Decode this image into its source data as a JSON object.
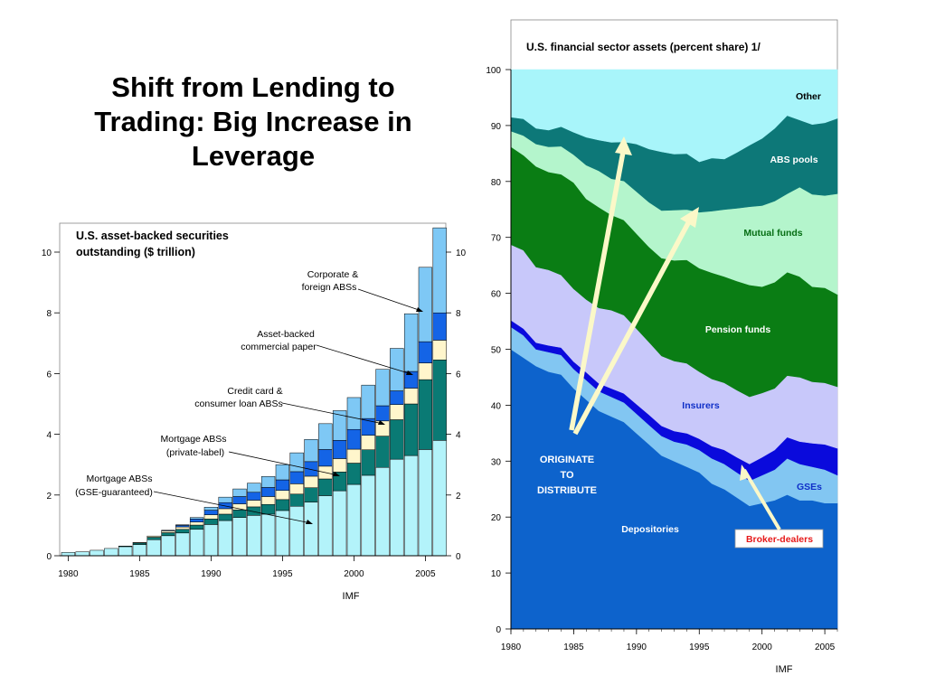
{
  "slide": {
    "title_lines": [
      "Shift from Lending to",
      "Trading: Big Increase in",
      "Leverage"
    ]
  },
  "chart_data": [
    {
      "type": "bar",
      "stacked": true,
      "title_lines": [
        "U.S. asset-backed securities",
        "outstanding ($ trillion)"
      ],
      "source": "IMF",
      "x": [
        1980,
        1981,
        1982,
        1983,
        1984,
        1985,
        1986,
        1987,
        1988,
        1989,
        1990,
        1991,
        1992,
        1993,
        1994,
        1995,
        1996,
        1997,
        1998,
        1999,
        2000,
        2001,
        2002,
        2003,
        2004,
        2005,
        2006
      ],
      "x_ticks": [
        "1980",
        "1985",
        "1990",
        "1995",
        "2000",
        "2005"
      ],
      "y_ticks": [
        "0",
        "2",
        "4",
        "6",
        "8",
        "10"
      ],
      "ylim": [
        0,
        11
      ],
      "grid": false,
      "series": [
        {
          "key": "gse",
          "color": "#b3f3fa",
          "values": [
            0.11,
            0.13,
            0.18,
            0.24,
            0.3,
            0.37,
            0.53,
            0.66,
            0.75,
            0.87,
            1.03,
            1.16,
            1.26,
            1.33,
            1.37,
            1.49,
            1.63,
            1.77,
            1.98,
            2.14,
            2.35,
            2.65,
            2.91,
            3.18,
            3.3,
            3.5,
            3.8
          ]
        },
        {
          "key": "private",
          "color": "#0a7a74",
          "values": [
            0,
            0,
            0,
            0,
            0.02,
            0.05,
            0.08,
            0.1,
            0.12,
            0.14,
            0.18,
            0.21,
            0.25,
            0.28,
            0.32,
            0.36,
            0.4,
            0.47,
            0.55,
            0.62,
            0.7,
            0.84,
            1.03,
            1.3,
            1.7,
            2.3,
            2.65
          ]
        },
        {
          "key": "consumer",
          "color": "#fff6cc",
          "values": [
            0,
            0,
            0,
            0,
            0,
            0.02,
            0.04,
            0.06,
            0.08,
            0.1,
            0.14,
            0.18,
            0.2,
            0.22,
            0.26,
            0.3,
            0.34,
            0.38,
            0.42,
            0.44,
            0.46,
            0.48,
            0.5,
            0.5,
            0.52,
            0.55,
            0.65
          ]
        },
        {
          "key": "abcp",
          "color": "#1464e6",
          "values": [
            0,
            0,
            0,
            0,
            0,
            0,
            0,
            0.02,
            0.05,
            0.1,
            0.15,
            0.2,
            0.24,
            0.26,
            0.3,
            0.35,
            0.4,
            0.48,
            0.55,
            0.6,
            0.65,
            0.55,
            0.5,
            0.45,
            0.55,
            0.7,
            0.9
          ]
        },
        {
          "key": "corporate",
          "color": "#7ec8f5",
          "values": [
            0,
            0,
            0,
            0,
            0,
            0,
            0,
            0,
            0.02,
            0.05,
            0.1,
            0.18,
            0.25,
            0.3,
            0.36,
            0.5,
            0.62,
            0.73,
            0.85,
            0.98,
            1.05,
            1.1,
            1.2,
            1.4,
            1.9,
            2.45,
            2.8
          ]
        }
      ],
      "annotations": [
        {
          "lines": [
            "Corporate &",
            "foreign ABSs"
          ]
        },
        {
          "lines": [
            "Asset-backed",
            "commercial paper"
          ]
        },
        {
          "lines": [
            "Credit card &",
            "consumer loan ABSs"
          ]
        },
        {
          "lines": [
            "Mortgage ABSs",
            "(private-label)"
          ]
        },
        {
          "lines": [
            "Mortgage ABSs",
            "(GSE-guaranteed)"
          ]
        }
      ]
    },
    {
      "type": "area",
      "stacked": true,
      "title": "U.S. financial sector assets (percent share) 1/",
      "source": "IMF",
      "x": [
        1980,
        1981,
        1982,
        1983,
        1984,
        1985,
        1986,
        1987,
        1988,
        1989,
        1990,
        1991,
        1992,
        1993,
        1994,
        1995,
        1996,
        1997,
        1998,
        1999,
        2000,
        2001,
        2002,
        2003,
        2004,
        2005,
        2006
      ],
      "x_ticks": [
        "1980",
        "1985",
        "1990",
        "1995",
        "2000",
        "2005"
      ],
      "y_ticks": [
        "0",
        "10",
        "20",
        "30",
        "40",
        "50",
        "60",
        "70",
        "80",
        "90",
        "100"
      ],
      "ylim": [
        0,
        100
      ],
      "grid": false,
      "series": [
        {
          "name": "Depositories",
          "color": "#0d63cc",
          "label_color": "#ffffff",
          "values": [
            50,
            48.5,
            47,
            46,
            45.5,
            43,
            41,
            39,
            38,
            37,
            35,
            33,
            31,
            30,
            29,
            28,
            26,
            25,
            23.5,
            22,
            22.5,
            23,
            24,
            23,
            23,
            22.5,
            22.5
          ]
        },
        {
          "name": "GSEs",
          "color": "#82c6f2",
          "label_color": "#1030c8",
          "values": [
            4,
            4,
            3,
            3.5,
            3.5,
            3.5,
            3.5,
            3.5,
            3.5,
            3.5,
            3.5,
            3.5,
            3.5,
            3.5,
            4,
            4,
            4.5,
            4.5,
            4.5,
            4.5,
            5,
            5.5,
            6.5,
            6.5,
            6,
            6,
            5
          ]
        },
        {
          "name": "Broker-dealers",
          "color": "#0a0adc",
          "label_color": "#e61919",
          "values": [
            1.2,
            1.2,
            1.2,
            1.2,
            1.3,
            1.3,
            1.4,
            1.4,
            1.5,
            1.6,
            1.7,
            1.8,
            1.8,
            1.9,
            2,
            2,
            2.2,
            2.5,
            2.7,
            3,
            3.2,
            3.5,
            3.8,
            4,
            4.2,
            4.5,
            4.8
          ]
        },
        {
          "name": "Insurers",
          "color": "#c8c8fa",
          "label_color": "#1030c8",
          "values": [
            13.5,
            14,
            13.5,
            13.5,
            13,
            13,
            13,
            13.5,
            14,
            14,
            13.5,
            13,
            12.5,
            12.5,
            12.5,
            12,
            12,
            12,
            12,
            12,
            11.5,
            11,
            11,
            11.5,
            11,
            11,
            11
          ]
        },
        {
          "name": "Pension funds",
          "color": "#0a7d14",
          "label_color": "#ffffff",
          "values": [
            17.5,
            17,
            18,
            17.5,
            18,
            19,
            18,
            18,
            17,
            17,
            17,
            17,
            17.5,
            18,
            18.5,
            18.5,
            19,
            19,
            19.5,
            20,
            19,
            19,
            18.5,
            18,
            17,
            17,
            16.5
          ]
        },
        {
          "name": "Mutual funds",
          "color": "#b4f5cc",
          "label_color": "#066e14",
          "values": [
            2.8,
            3.5,
            4,
            4.5,
            5,
            5,
            6,
            6.5,
            6.5,
            7,
            7.5,
            8,
            8.5,
            9,
            9,
            10,
            11,
            12,
            13,
            14,
            14.5,
            14.5,
            14,
            16,
            16.5,
            16.5,
            18
          ]
        },
        {
          "name": "ABS pools",
          "color": "#0d7878",
          "label_color": "#ffffff",
          "values": [
            2.5,
            3,
            2.8,
            3,
            3.5,
            4,
            5,
            5.5,
            6.5,
            7,
            8.5,
            9.5,
            10.5,
            10,
            10,
            9,
            9.5,
            9,
            10,
            11,
            12,
            13,
            14,
            12,
            12.5,
            13,
            13.5
          ]
        },
        {
          "name": "Other",
          "color": "#a8f5fa",
          "label_color": "#000000",
          "values": [
            8.5,
            8.8,
            8.5,
            8.8,
            8.2,
            8.2,
            8.1,
            8.1,
            8.5,
            8.9,
            8.8,
            8.7,
            8.7,
            8.2,
            8,
            8.5,
            7.8,
            7.5,
            7,
            7,
            8.3,
            8.5,
            8.2,
            8.5,
            9.3,
            9.5,
            9.2
          ]
        }
      ],
      "annotations": [
        {
          "lines": [
            "ORIGINATE",
            "TO",
            "DISTRIBUTE"
          ],
          "color": "#ffffff"
        }
      ]
    }
  ]
}
